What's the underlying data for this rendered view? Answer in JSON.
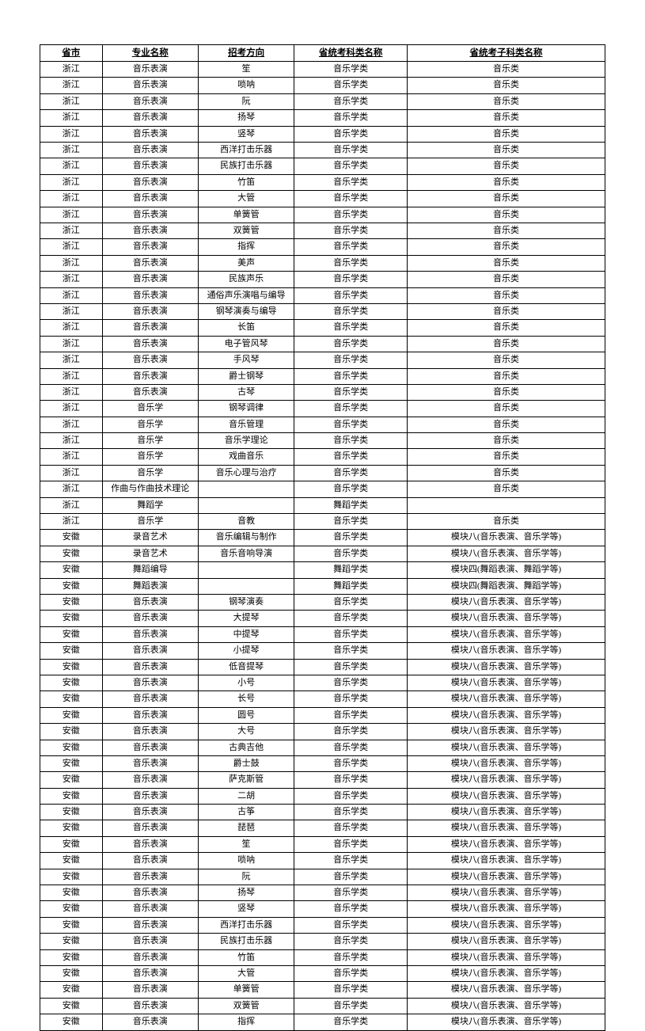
{
  "table": {
    "columns": [
      "省市",
      "专业名称",
      "招考方向",
      "省统考科类名称",
      "省统考子科类名称"
    ],
    "rows": [
      [
        "浙江",
        "音乐表演",
        "笙",
        "音乐学类",
        "音乐类"
      ],
      [
        "浙江",
        "音乐表演",
        "唢呐",
        "音乐学类",
        "音乐类"
      ],
      [
        "浙江",
        "音乐表演",
        "阮",
        "音乐学类",
        "音乐类"
      ],
      [
        "浙江",
        "音乐表演",
        "扬琴",
        "音乐学类",
        "音乐类"
      ],
      [
        "浙江",
        "音乐表演",
        "竖琴",
        "音乐学类",
        "音乐类"
      ],
      [
        "浙江",
        "音乐表演",
        "西洋打击乐器",
        "音乐学类",
        "音乐类"
      ],
      [
        "浙江",
        "音乐表演",
        "民族打击乐器",
        "音乐学类",
        "音乐类"
      ],
      [
        "浙江",
        "音乐表演",
        "竹笛",
        "音乐学类",
        "音乐类"
      ],
      [
        "浙江",
        "音乐表演",
        "大管",
        "音乐学类",
        "音乐类"
      ],
      [
        "浙江",
        "音乐表演",
        "单簧管",
        "音乐学类",
        "音乐类"
      ],
      [
        "浙江",
        "音乐表演",
        "双簧管",
        "音乐学类",
        "音乐类"
      ],
      [
        "浙江",
        "音乐表演",
        "指挥",
        "音乐学类",
        "音乐类"
      ],
      [
        "浙江",
        "音乐表演",
        "美声",
        "音乐学类",
        "音乐类"
      ],
      [
        "浙江",
        "音乐表演",
        "民族声乐",
        "音乐学类",
        "音乐类"
      ],
      [
        "浙江",
        "音乐表演",
        "通俗声乐演唱与编导",
        "音乐学类",
        "音乐类"
      ],
      [
        "浙江",
        "音乐表演",
        "钢琴演奏与编导",
        "音乐学类",
        "音乐类"
      ],
      [
        "浙江",
        "音乐表演",
        "长笛",
        "音乐学类",
        "音乐类"
      ],
      [
        "浙江",
        "音乐表演",
        "电子管风琴",
        "音乐学类",
        "音乐类"
      ],
      [
        "浙江",
        "音乐表演",
        "手风琴",
        "音乐学类",
        "音乐类"
      ],
      [
        "浙江",
        "音乐表演",
        "爵士钢琴",
        "音乐学类",
        "音乐类"
      ],
      [
        "浙江",
        "音乐表演",
        "古琴",
        "音乐学类",
        "音乐类"
      ],
      [
        "浙江",
        "音乐学",
        "钢琴调律",
        "音乐学类",
        "音乐类"
      ],
      [
        "浙江",
        "音乐学",
        "音乐管理",
        "音乐学类",
        "音乐类"
      ],
      [
        "浙江",
        "音乐学",
        "音乐学理论",
        "音乐学类",
        "音乐类"
      ],
      [
        "浙江",
        "音乐学",
        "戏曲音乐",
        "音乐学类",
        "音乐类"
      ],
      [
        "浙江",
        "音乐学",
        "音乐心理与治疗",
        "音乐学类",
        "音乐类"
      ],
      [
        "浙江",
        "作曲与作曲技术理论",
        "",
        "音乐学类",
        "音乐类"
      ],
      [
        "浙江",
        "舞蹈学",
        "",
        "舞蹈学类",
        ""
      ],
      [
        "浙江",
        "音乐学",
        "音教",
        "音乐学类",
        "音乐类"
      ],
      [
        "安徽",
        "录音艺术",
        "音乐编辑与制作",
        "音乐学类",
        "模块八(音乐表演、音乐学等)"
      ],
      [
        "安徽",
        "录音艺术",
        "音乐音响导演",
        "音乐学类",
        "模块八(音乐表演、音乐学等)"
      ],
      [
        "安徽",
        "舞蹈编导",
        "",
        "舞蹈学类",
        "模块四(舞蹈表演、舞蹈学等)"
      ],
      [
        "安徽",
        "舞蹈表演",
        "",
        "舞蹈学类",
        "模块四(舞蹈表演、舞蹈学等)"
      ],
      [
        "安徽",
        "音乐表演",
        "钢琴演奏",
        "音乐学类",
        "模块八(音乐表演、音乐学等)"
      ],
      [
        "安徽",
        "音乐表演",
        "大提琴",
        "音乐学类",
        "模块八(音乐表演、音乐学等)"
      ],
      [
        "安徽",
        "音乐表演",
        "中提琴",
        "音乐学类",
        "模块八(音乐表演、音乐学等)"
      ],
      [
        "安徽",
        "音乐表演",
        "小提琴",
        "音乐学类",
        "模块八(音乐表演、音乐学等)"
      ],
      [
        "安徽",
        "音乐表演",
        "低音提琴",
        "音乐学类",
        "模块八(音乐表演、音乐学等)"
      ],
      [
        "安徽",
        "音乐表演",
        "小号",
        "音乐学类",
        "模块八(音乐表演、音乐学等)"
      ],
      [
        "安徽",
        "音乐表演",
        "长号",
        "音乐学类",
        "模块八(音乐表演、音乐学等)"
      ],
      [
        "安徽",
        "音乐表演",
        "圆号",
        "音乐学类",
        "模块八(音乐表演、音乐学等)"
      ],
      [
        "安徽",
        "音乐表演",
        "大号",
        "音乐学类",
        "模块八(音乐表演、音乐学等)"
      ],
      [
        "安徽",
        "音乐表演",
        "古典吉他",
        "音乐学类",
        "模块八(音乐表演、音乐学等)"
      ],
      [
        "安徽",
        "音乐表演",
        "爵士鼓",
        "音乐学类",
        "模块八(音乐表演、音乐学等)"
      ],
      [
        "安徽",
        "音乐表演",
        "萨克斯管",
        "音乐学类",
        "模块八(音乐表演、音乐学等)"
      ],
      [
        "安徽",
        "音乐表演",
        "二胡",
        "音乐学类",
        "模块八(音乐表演、音乐学等)"
      ],
      [
        "安徽",
        "音乐表演",
        "古筝",
        "音乐学类",
        "模块八(音乐表演、音乐学等)"
      ],
      [
        "安徽",
        "音乐表演",
        "琵琶",
        "音乐学类",
        "模块八(音乐表演、音乐学等)"
      ],
      [
        "安徽",
        "音乐表演",
        "笙",
        "音乐学类",
        "模块八(音乐表演、音乐学等)"
      ],
      [
        "安徽",
        "音乐表演",
        "唢呐",
        "音乐学类",
        "模块八(音乐表演、音乐学等)"
      ],
      [
        "安徽",
        "音乐表演",
        "阮",
        "音乐学类",
        "模块八(音乐表演、音乐学等)"
      ],
      [
        "安徽",
        "音乐表演",
        "扬琴",
        "音乐学类",
        "模块八(音乐表演、音乐学等)"
      ],
      [
        "安徽",
        "音乐表演",
        "竖琴",
        "音乐学类",
        "模块八(音乐表演、音乐学等)"
      ],
      [
        "安徽",
        "音乐表演",
        "西洋打击乐器",
        "音乐学类",
        "模块八(音乐表演、音乐学等)"
      ],
      [
        "安徽",
        "音乐表演",
        "民族打击乐器",
        "音乐学类",
        "模块八(音乐表演、音乐学等)"
      ],
      [
        "安徽",
        "音乐表演",
        "竹笛",
        "音乐学类",
        "模块八(音乐表演、音乐学等)"
      ],
      [
        "安徽",
        "音乐表演",
        "大管",
        "音乐学类",
        "模块八(音乐表演、音乐学等)"
      ],
      [
        "安徽",
        "音乐表演",
        "单簧管",
        "音乐学类",
        "模块八(音乐表演、音乐学等)"
      ],
      [
        "安徽",
        "音乐表演",
        "双簧管",
        "音乐学类",
        "模块八(音乐表演、音乐学等)"
      ],
      [
        "安徽",
        "音乐表演",
        "指挥",
        "音乐学类",
        "模块八(音乐表演、音乐学等)"
      ]
    ]
  }
}
